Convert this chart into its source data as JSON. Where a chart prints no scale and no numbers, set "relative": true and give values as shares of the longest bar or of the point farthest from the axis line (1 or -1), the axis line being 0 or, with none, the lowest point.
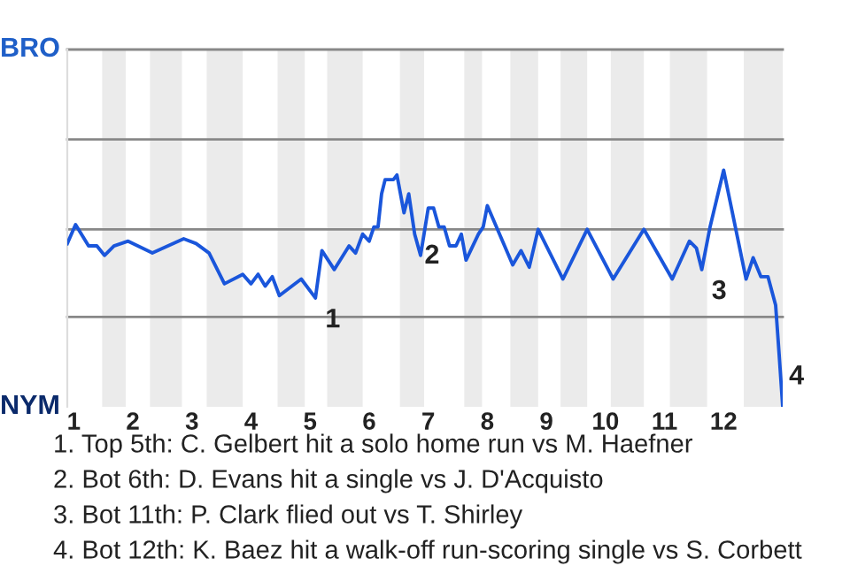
{
  "chart_data": {
    "type": "line",
    "relative": true,
    "x": [
      0.89,
      1.03,
      1.25,
      1.39,
      1.52,
      1.68,
      1.92,
      2.33,
      2.86,
      3.07,
      3.29,
      3.55,
      3.86,
      4.0,
      4.12,
      4.24,
      4.36,
      4.48,
      4.85,
      5.09,
      5.2,
      5.41,
      5.66,
      5.77,
      5.89,
      6.0,
      6.08,
      6.15,
      6.21,
      6.27,
      6.41,
      6.47,
      6.59,
      6.67,
      6.77,
      6.87,
      7.0,
      7.09,
      7.18,
      7.27,
      7.36,
      7.47,
      7.56,
      7.64,
      7.85,
      7.93,
      8.0,
      8.43,
      8.57,
      8.71,
      8.86,
      9.28,
      9.69,
      10.13,
      10.65,
      11.13,
      11.42,
      11.54,
      11.63,
      11.77,
      12.0,
      12.38,
      12.5,
      12.63,
      12.75,
      12.88,
      12.94,
      13.0
    ],
    "series": [
      {
        "color": "#1a56db",
        "values": [
          0.69,
          0.77,
          0.68,
          0.68,
          0.64,
          0.68,
          0.7,
          0.65,
          0.71,
          0.69,
          0.65,
          0.52,
          0.56,
          0.52,
          0.56,
          0.51,
          0.55,
          0.47,
          0.54,
          0.46,
          0.66,
          0.58,
          0.68,
          0.65,
          0.73,
          0.7,
          0.76,
          0.76,
          0.9,
          0.96,
          0.96,
          0.98,
          0.82,
          0.9,
          0.73,
          0.64,
          0.84,
          0.84,
          0.76,
          0.76,
          0.68,
          0.68,
          0.73,
          0.62,
          0.73,
          0.76,
          0.85,
          0.6,
          0.66,
          0.59,
          0.75,
          0.54,
          0.75,
          0.54,
          0.75,
          0.54,
          0.7,
          0.67,
          0.58,
          0.76,
          1,
          0.54,
          0.63,
          0.55,
          0.55,
          0.43,
          0.22,
          0
        ]
      }
    ],
    "xlim": [
      0.89,
      13
    ],
    "xticks": [
      1,
      2,
      3,
      4,
      5,
      6,
      7,
      8,
      9,
      10,
      11,
      12
    ],
    "ref_lines": [
      {
        "axis": "y",
        "value": 0.38,
        "color": "#888888"
      },
      {
        "axis": "y",
        "value": 0.75,
        "color": "#888888"
      },
      {
        "axis": "y",
        "value": 1.13,
        "color": "#888888"
      },
      {
        "axis": "y",
        "value": 1.51,
        "color": "#888888"
      }
    ],
    "marker": "none",
    "bands": [
      {
        "axis": "x",
        "from": 1.48,
        "to": 1.88,
        "color": "#ebebeb"
      },
      {
        "axis": "x",
        "from": 2.29,
        "to": 2.83,
        "color": "#ebebeb"
      },
      {
        "axis": "x",
        "from": 3.25,
        "to": 3.86,
        "color": "#ebebeb"
      },
      {
        "axis": "x",
        "from": 4.45,
        "to": 4.91,
        "color": "#ebebeb"
      },
      {
        "axis": "x",
        "from": 5.29,
        "to": 5.89,
        "color": "#ebebeb"
      },
      {
        "axis": "x",
        "from": 6.52,
        "to": 6.93,
        "color": "#ebebeb"
      },
      {
        "axis": "x",
        "from": 7.61,
        "to": 7.91,
        "color": "#ebebeb"
      },
      {
        "axis": "x",
        "from": 8.39,
        "to": 8.86,
        "color": "#ebebeb"
      },
      {
        "axis": "x",
        "from": 9.24,
        "to": 9.69,
        "color": "#ebebeb"
      },
      {
        "axis": "x",
        "from": 10.09,
        "to": 10.65,
        "color": "#ebebeb"
      },
      {
        "axis": "x",
        "from": 11.09,
        "to": 11.72,
        "color": "#ebebeb"
      },
      {
        "axis": "x",
        "from": 12.34,
        "to": 13,
        "color": "#ebebeb"
      }
    ],
    "annotations": [
      "BRO",
      "NYM",
      {
        "text": "1",
        "x": 5.09,
        "y": 0.46
      },
      {
        "text": "2",
        "x": 6.77,
        "y": 0.73
      },
      {
        "text": "3",
        "x": 11.63,
        "y": 0.58
      },
      {
        "text": "4",
        "x": 12.94,
        "y": 0.22
      },
      "1. Top 5th: C. Gelbert hit a solo home run vs M. Haefner",
      "2. Bot 6th: D. Evans hit a single vs J. D'Acquisto",
      "3. Bot 11th: P. Clark flied out vs T. Shirley",
      "4. Bot 12th: K. Baez hit a walk-off run-scoring single vs S. Corbett"
    ]
  }
}
